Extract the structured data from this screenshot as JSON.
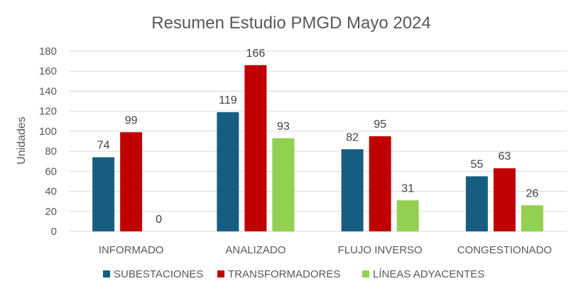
{
  "chart_data": {
    "type": "bar",
    "title": "Resumen Estudio PMGD Mayo 2024",
    "xlabel": "",
    "ylabel": "Unidades",
    "ylim": [
      0,
      180
    ],
    "yticks": [
      0,
      20,
      40,
      60,
      80,
      100,
      120,
      140,
      160,
      180
    ],
    "grid": true,
    "legend_position": "bottom",
    "categories": [
      "INFORMADO",
      "ANALIZADO",
      "FLUJO INVERSO",
      "CONGESTIONADO"
    ],
    "series": [
      {
        "name": "SUBESTACIONES",
        "color": "#155e82",
        "values": [
          74,
          119,
          82,
          55
        ]
      },
      {
        "name": "TRANSFORMADORES",
        "color": "#c00000",
        "values": [
          99,
          166,
          95,
          63
        ]
      },
      {
        "name": "LÍNEAS ADYACENTES",
        "color": "#92d050",
        "values": [
          0,
          93,
          31,
          26
        ]
      }
    ]
  }
}
